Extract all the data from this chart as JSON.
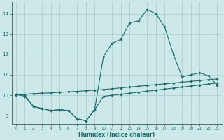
{
  "xlabel": "Humidex (Indice chaleur)",
  "background_color": "#cce8e8",
  "grid_color": "#aacccc",
  "line_color": "#1a6b6b",
  "xlim": [
    -0.5,
    23.5
  ],
  "ylim": [
    8.6,
    14.55
  ],
  "yticks": [
    9,
    10,
    11,
    12,
    13,
    14
  ],
  "xticks": [
    0,
    1,
    2,
    3,
    4,
    5,
    6,
    7,
    8,
    9,
    10,
    11,
    12,
    13,
    14,
    15,
    16,
    17,
    18,
    19,
    20,
    21,
    22,
    23
  ],
  "series1_x": [
    0,
    1,
    2,
    3,
    4,
    5,
    6,
    7,
    8,
    9,
    10,
    11,
    12,
    13,
    14,
    15,
    16,
    17,
    18,
    19,
    20,
    21,
    22,
    23
  ],
  "series1_y": [
    10.05,
    9.95,
    9.45,
    9.35,
    9.25,
    9.3,
    9.25,
    8.85,
    8.75,
    9.3,
    11.9,
    12.55,
    12.75,
    13.55,
    13.65,
    14.2,
    14.0,
    13.35,
    12.0,
    10.9,
    11.0,
    11.1,
    10.95,
    10.5
  ],
  "series2_x": [
    0,
    1,
    2,
    3,
    4,
    5,
    6,
    7,
    8,
    9,
    10,
    11,
    12,
    13,
    14,
    15,
    16,
    17,
    18,
    19,
    20,
    21,
    22,
    23
  ],
  "series2_y": [
    10.05,
    10.05,
    10.08,
    10.1,
    10.12,
    10.14,
    10.17,
    10.19,
    10.22,
    10.25,
    10.28,
    10.32,
    10.36,
    10.4,
    10.44,
    10.48,
    10.52,
    10.56,
    10.6,
    10.64,
    10.68,
    10.72,
    10.76,
    10.8
  ],
  "series3_x": [
    0,
    1,
    2,
    3,
    4,
    5,
    6,
    7,
    8,
    9,
    10,
    11,
    12,
    13,
    14,
    15,
    16,
    17,
    18,
    19,
    20,
    21,
    22,
    23
  ],
  "series3_y": [
    10.02,
    10.02,
    9.45,
    9.35,
    9.25,
    9.3,
    9.25,
    8.85,
    8.75,
    9.3,
    9.95,
    10.0,
    10.05,
    10.1,
    10.15,
    10.2,
    10.25,
    10.3,
    10.35,
    10.4,
    10.45,
    10.5,
    10.55,
    10.6
  ]
}
